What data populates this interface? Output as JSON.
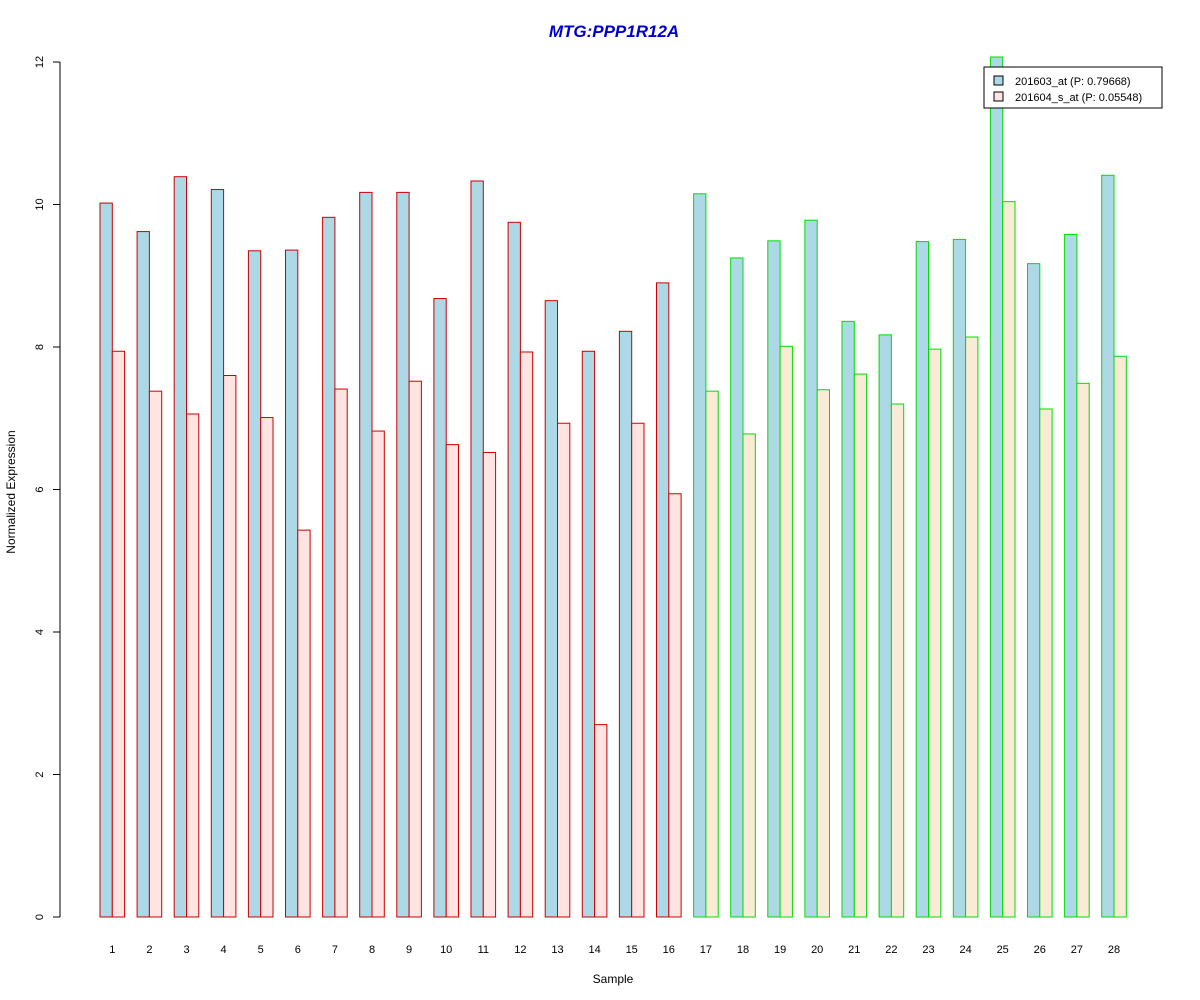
{
  "chart_data": {
    "type": "bar",
    "title": "MTG:PPP1R12A",
    "title_color": "#0000CC",
    "xlabel": "Sample",
    "ylabel": "Normalized Expression",
    "ylim": [
      0,
      12
    ],
    "yticks": [
      0,
      2,
      4,
      6,
      8,
      10,
      12
    ],
    "grid": false,
    "legend_position": "top-right",
    "categories": [
      "1",
      "2",
      "3",
      "4",
      "5",
      "6",
      "7",
      "8",
      "9",
      "10",
      "11",
      "12",
      "13",
      "14",
      "15",
      "16",
      "17",
      "18",
      "19",
      "20",
      "21",
      "22",
      "23",
      "24",
      "25",
      "26",
      "27",
      "28"
    ],
    "groups": [
      {
        "count": 16,
        "border_color": "#CC0000"
      },
      {
        "count": 12,
        "border_color": "#00DD00"
      }
    ],
    "series": [
      {
        "name": "201603_at (P: 0.79668)",
        "fill": "#ADD8E6",
        "values": [
          10.02,
          9.62,
          10.39,
          10.21,
          9.35,
          9.36,
          9.82,
          10.17,
          10.17,
          8.68,
          10.33,
          9.75,
          8.65,
          7.94,
          8.22,
          8.9,
          10.15,
          9.25,
          9.49,
          9.78,
          8.36,
          8.17,
          9.48,
          9.51,
          12.07,
          9.17,
          9.58,
          10.41
        ]
      },
      {
        "name": "201604_s_at (P: 0.05548)",
        "fill_group1": "#FFE4E1",
        "fill_group2": "#FAEBD7",
        "values": [
          7.94,
          7.38,
          7.06,
          7.6,
          7.01,
          5.43,
          7.41,
          6.82,
          7.52,
          6.63,
          6.52,
          7.93,
          6.93,
          2.7,
          6.93,
          5.94,
          7.38,
          6.78,
          8.01,
          7.4,
          7.62,
          7.2,
          7.97,
          8.14,
          10.04,
          7.13,
          7.49,
          7.87
        ]
      }
    ]
  }
}
